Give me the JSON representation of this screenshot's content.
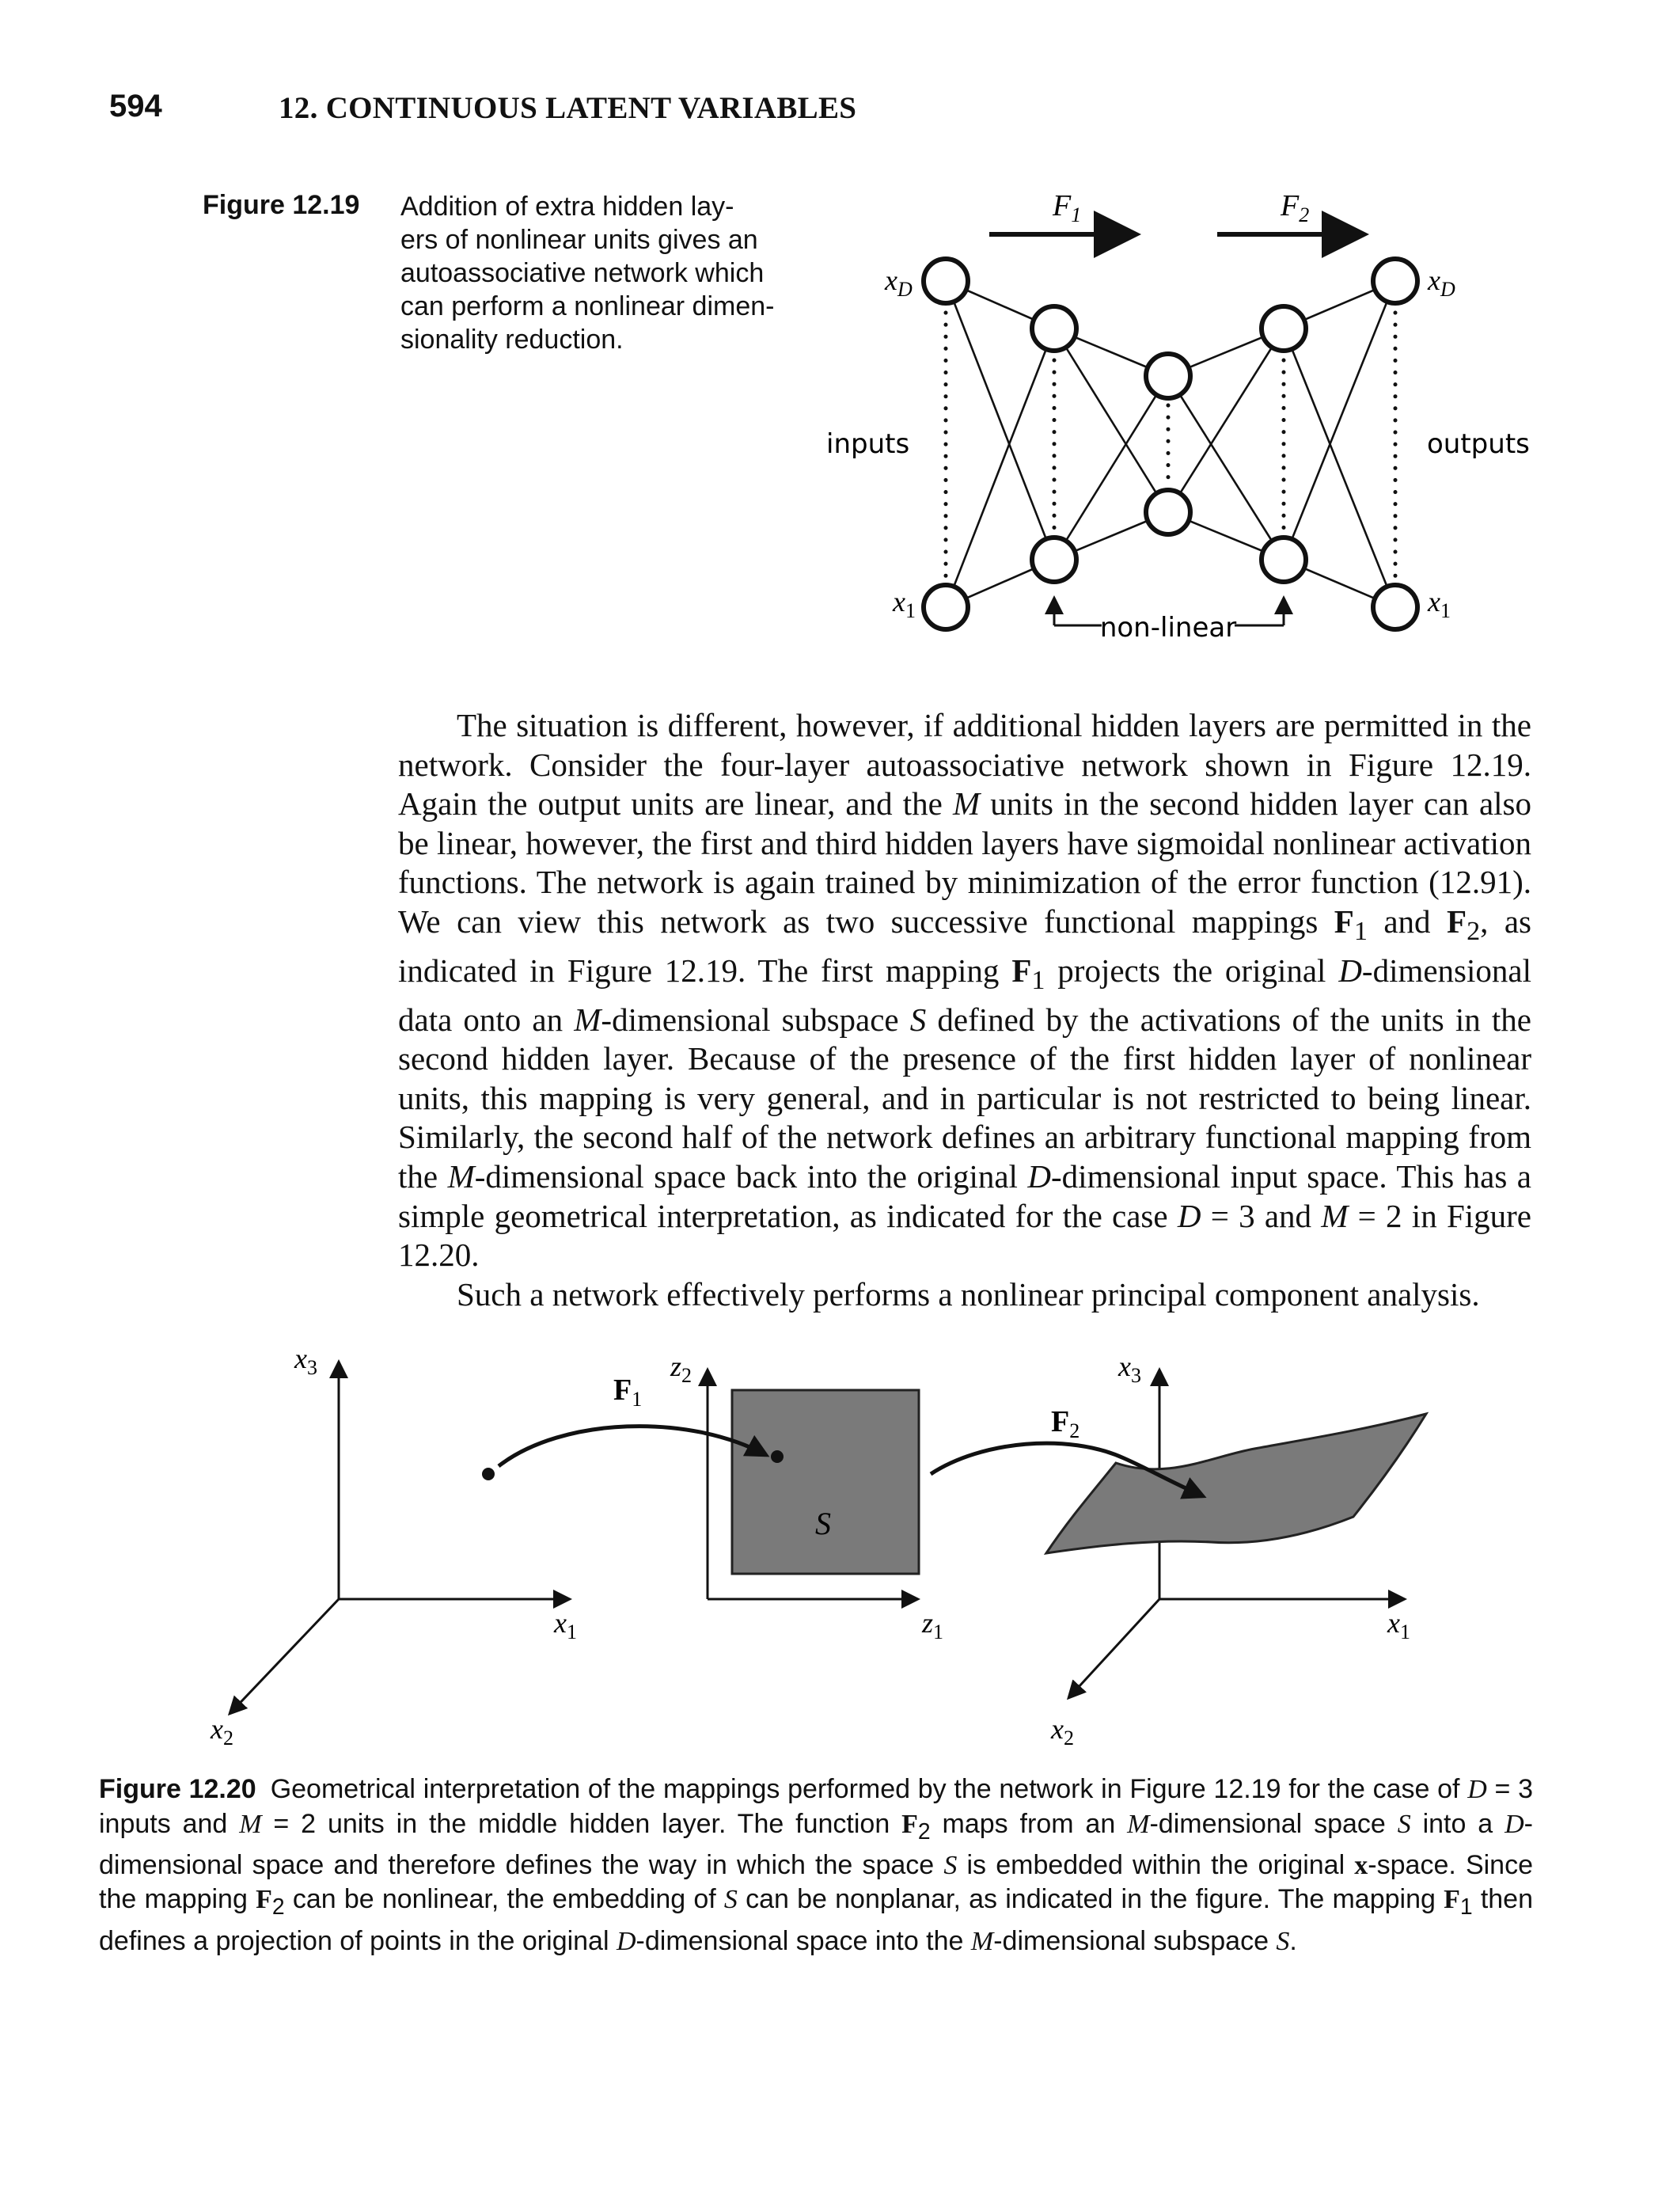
{
  "header": {
    "page_number": "594",
    "chapter_title": "12. CONTINUOUS LATENT VARIABLES"
  },
  "figure_12_19": {
    "label": "Figure 12.19",
    "caption_lines": [
      "Addition of extra hidden lay-",
      "ers of nonlinear units gives an",
      "autoassociative network which",
      "can perform a nonlinear dimen-",
      "sionality reduction."
    ],
    "network": {
      "mapping_1": "F",
      "mapping_1_sub": "1",
      "mapping_2": "F",
      "mapping_2_sub": "2",
      "input_top": "x",
      "input_top_sub": "D",
      "input_bottom": "x",
      "input_bottom_sub": "1",
      "output_top": "x",
      "output_top_sub": "D",
      "output_bottom": "x",
      "output_bottom_sub": "1",
      "inputs_label": "inputs",
      "outputs_label": "outputs",
      "nonlinear_label": "non-linear"
    }
  },
  "body": {
    "paragraph_1": [
      "The situation is different, however, if additional hidden layers are permitted in the network. Consider the four-layer autoassociative network shown in Figure 12.19. Again the output units are linear, and the ",
      "M",
      " units in the second hidden layer can also be linear, however, the first and third hidden layers have sigmoidal nonlinear activation functions. The network is again trained by minimization of the error function (12.91). We can view this network as two successive functional mappings ",
      "F",
      "1",
      " and ",
      "F",
      "2",
      ", as indicated in Figure 12.19. The first mapping ",
      "F",
      "1",
      " projects the original ",
      "D",
      "-dimensional data onto an ",
      "M",
      "-dimensional subspace ",
      "S",
      " defined by the activations of the units in the second hidden layer. Because of the presence of the first hidden layer of nonlinear units, this mapping is very general, and in particular is not restricted to being linear. Similarly, the second half of the network defines an arbitrary functional mapping from the ",
      "M",
      "-dimensional space back into the original ",
      "D",
      "-dimensional input space. This has a simple geometrical interpretation, as indicated for the case ",
      "D",
      " = 3 and ",
      "M",
      " = 2 in Figure 12.20."
    ],
    "paragraph_2": "Such a network effectively performs a nonlinear principal component analysis."
  },
  "figure_12_20": {
    "label": "Figure 12.20",
    "axes": {
      "x1": "x",
      "x1_sub": "1",
      "x2": "x",
      "x2_sub": "2",
      "x3": "x",
      "x3_sub": "3",
      "z1": "z",
      "z1_sub": "1",
      "z2": "z",
      "z2_sub": "2"
    },
    "mapping_1": "F",
    "mapping_1_sub": "1",
    "mapping_2": "F",
    "mapping_2_sub": "2",
    "subspace": "S",
    "caption": [
      "Geometrical interpretation of the mappings performed by the network in Figure 12.19 for the case of ",
      "D",
      " = 3 inputs and ",
      "M",
      " = 2 units in the middle hidden layer. The function ",
      "F",
      "2",
      " maps from an ",
      "M",
      "-dimensional space ",
      "S",
      " into a ",
      "D",
      "-dimensional space and therefore defines the way in which the space ",
      "S",
      " is embedded within the original ",
      "x",
      "-space. Since the mapping ",
      "F",
      "2",
      " can be nonlinear, the embedding of ",
      "S",
      " can be nonplanar, as indicated in the figure. The mapping ",
      "F",
      "1",
      " then defines a projection of points in the original ",
      "D",
      "-dimensional space into the ",
      "M",
      "-dimensional subspace ",
      "S",
      "."
    ]
  }
}
